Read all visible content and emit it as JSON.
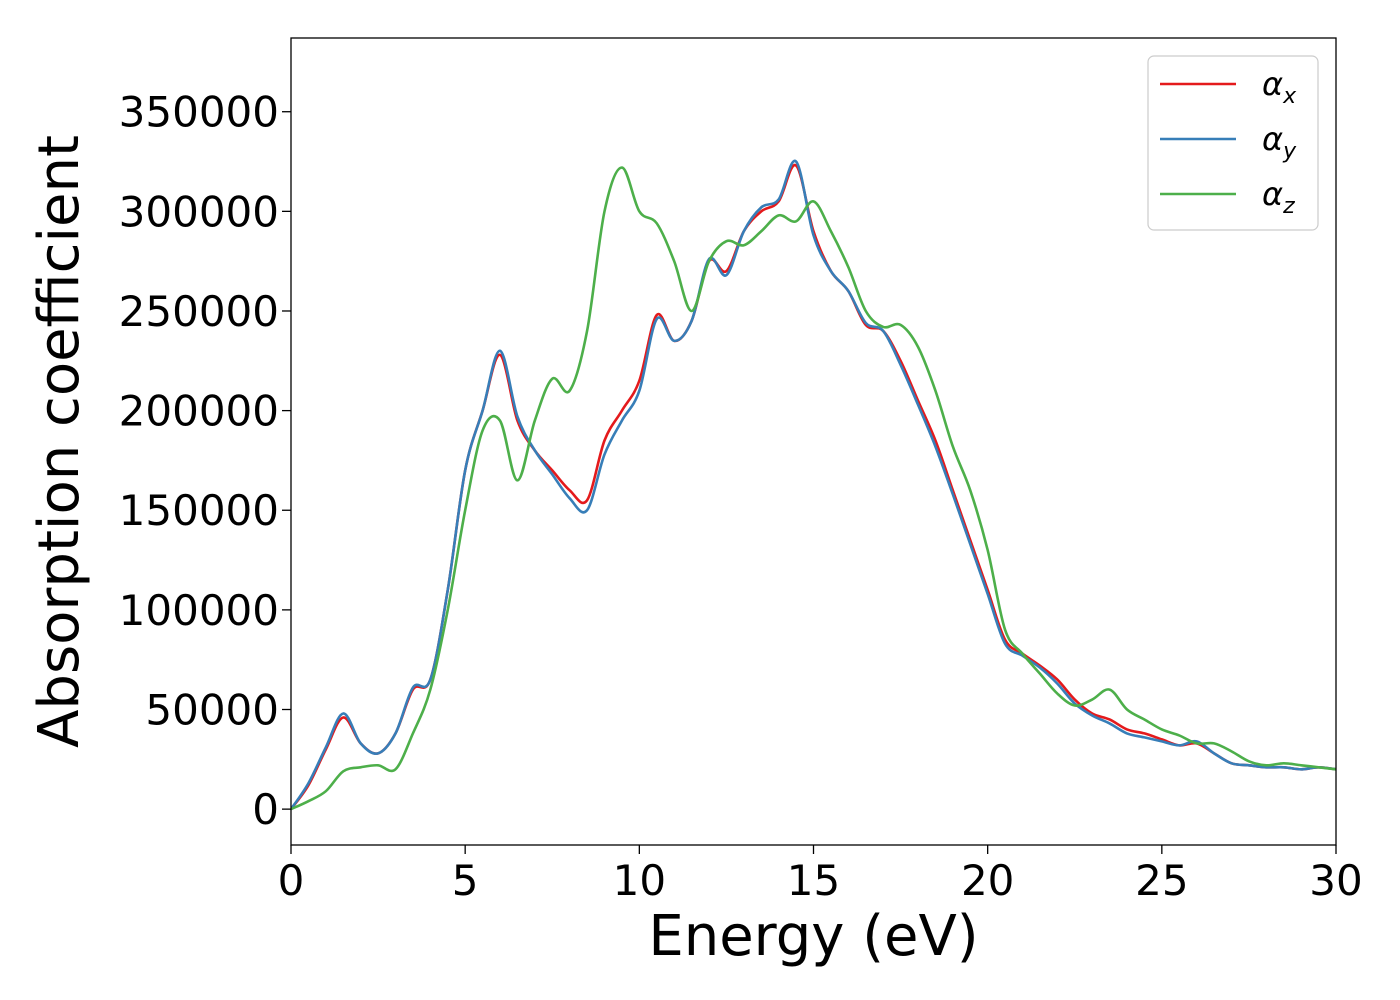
{
  "chart_data": {
    "type": "line",
    "title": "",
    "xlabel": "Energy (eV)",
    "ylabel": "Absorption coefficient",
    "xlim": [
      0,
      30
    ],
    "ylim": [
      -18000,
      387000
    ],
    "xticks": [
      0,
      5,
      10,
      15,
      20,
      25,
      30
    ],
    "xtick_labels": [
      "0",
      "5",
      "10",
      "15",
      "20",
      "25",
      "30"
    ],
    "yticks": [
      0,
      50000,
      100000,
      150000,
      200000,
      250000,
      300000,
      350000
    ],
    "ytick_labels": [
      "0",
      "50000",
      "100000",
      "150000",
      "200000",
      "250000",
      "300000",
      "350000"
    ],
    "grid": false,
    "legend_position": "top-right",
    "series": [
      {
        "name": "α",
        "subscript": "x",
        "color": "#e41a1c",
        "x": [
          0,
          0.5,
          1.0,
          1.5,
          2.0,
          2.5,
          3.0,
          3.5,
          4.0,
          4.5,
          5.0,
          5.5,
          6.0,
          6.5,
          7.0,
          7.5,
          8.0,
          8.5,
          9.0,
          9.5,
          10.0,
          10.5,
          11.0,
          11.5,
          12.0,
          12.5,
          13.0,
          13.5,
          14.0,
          14.5,
          15.0,
          15.5,
          16.0,
          16.5,
          17.0,
          17.5,
          18.0,
          18.5,
          19.0,
          19.5,
          20.0,
          20.5,
          21.0,
          21.5,
          22.0,
          22.5,
          23.0,
          23.5,
          24.0,
          24.5,
          25.0,
          25.5,
          26.0,
          26.5,
          27.0,
          27.5,
          28.0,
          28.5,
          29.0,
          29.5,
          30.0
        ],
        "y": [
          0,
          12000,
          30000,
          46000,
          33000,
          28000,
          38000,
          60000,
          65000,
          110000,
          170000,
          200000,
          228000,
          195000,
          180000,
          170000,
          160000,
          155000,
          185000,
          200000,
          215000,
          248000,
          235000,
          245000,
          275000,
          270000,
          290000,
          300000,
          305000,
          323000,
          290000,
          270000,
          260000,
          243000,
          240000,
          225000,
          205000,
          185000,
          160000,
          135000,
          110000,
          85000,
          78000,
          72000,
          65000,
          55000,
          48000,
          45000,
          40000,
          38000,
          35000,
          32000,
          33000,
          28000,
          23000,
          22000,
          21000,
          21000,
          20000,
          21000,
          20000
        ]
      },
      {
        "name": "α",
        "subscript": "y",
        "color": "#377eb8",
        "x": [
          0,
          0.5,
          1.0,
          1.5,
          2.0,
          2.5,
          3.0,
          3.5,
          4.0,
          4.5,
          5.0,
          5.5,
          6.0,
          6.5,
          7.0,
          7.5,
          8.0,
          8.5,
          9.0,
          9.5,
          10.0,
          10.5,
          11.0,
          11.5,
          12.0,
          12.5,
          13.0,
          13.5,
          14.0,
          14.5,
          15.0,
          15.5,
          16.0,
          16.5,
          17.0,
          17.5,
          18.0,
          18.5,
          19.0,
          19.5,
          20.0,
          20.5,
          21.0,
          21.5,
          22.0,
          22.5,
          23.0,
          23.5,
          24.0,
          24.5,
          25.0,
          25.5,
          26.0,
          26.5,
          27.0,
          27.5,
          28.0,
          28.5,
          29.0,
          29.5,
          30.0
        ],
        "y": [
          0,
          13000,
          31000,
          48000,
          33000,
          28000,
          38000,
          61000,
          65000,
          110000,
          170000,
          200000,
          230000,
          197000,
          180000,
          168000,
          156000,
          150000,
          178000,
          195000,
          210000,
          246000,
          235000,
          245000,
          276000,
          268000,
          290000,
          302000,
          306000,
          325000,
          288000,
          270000,
          260000,
          244000,
          240000,
          223000,
          203000,
          182000,
          158000,
          133000,
          108000,
          83000,
          77000,
          71000,
          63000,
          53000,
          47000,
          43000,
          38000,
          36000,
          34000,
          32000,
          34000,
          28000,
          23000,
          22000,
          21000,
          21000,
          20000,
          21000,
          20000
        ]
      },
      {
        "name": "α",
        "subscript": "z",
        "color": "#4daf4a",
        "x": [
          0,
          0.5,
          1.0,
          1.5,
          2.0,
          2.5,
          3.0,
          3.5,
          4.0,
          4.5,
          5.0,
          5.5,
          6.0,
          6.5,
          7.0,
          7.5,
          8.0,
          8.5,
          9.0,
          9.5,
          10.0,
          10.5,
          11.0,
          11.5,
          12.0,
          12.5,
          13.0,
          13.5,
          14.0,
          14.5,
          15.0,
          15.5,
          16.0,
          16.5,
          17.0,
          17.5,
          18.0,
          18.5,
          19.0,
          19.5,
          20.0,
          20.5,
          21.0,
          21.5,
          22.0,
          22.5,
          23.0,
          23.5,
          24.0,
          24.5,
          25.0,
          25.5,
          26.0,
          26.5,
          27.0,
          27.5,
          28.0,
          28.5,
          29.0,
          29.5,
          30.0
        ],
        "y": [
          0,
          4000,
          9000,
          19000,
          21000,
          22000,
          20000,
          38000,
          60000,
          100000,
          150000,
          190000,
          195000,
          165000,
          195000,
          216000,
          210000,
          240000,
          300000,
          322000,
          300000,
          294000,
          275000,
          250000,
          275000,
          285000,
          283000,
          290000,
          298000,
          295000,
          305000,
          290000,
          272000,
          250000,
          242000,
          243000,
          232000,
          210000,
          182000,
          160000,
          130000,
          90000,
          78000,
          68000,
          58000,
          52000,
          55000,
          60000,
          50000,
          45000,
          40000,
          37000,
          33000,
          33000,
          29000,
          24000,
          22000,
          23000,
          22000,
          21000,
          20000
        ]
      }
    ]
  }
}
